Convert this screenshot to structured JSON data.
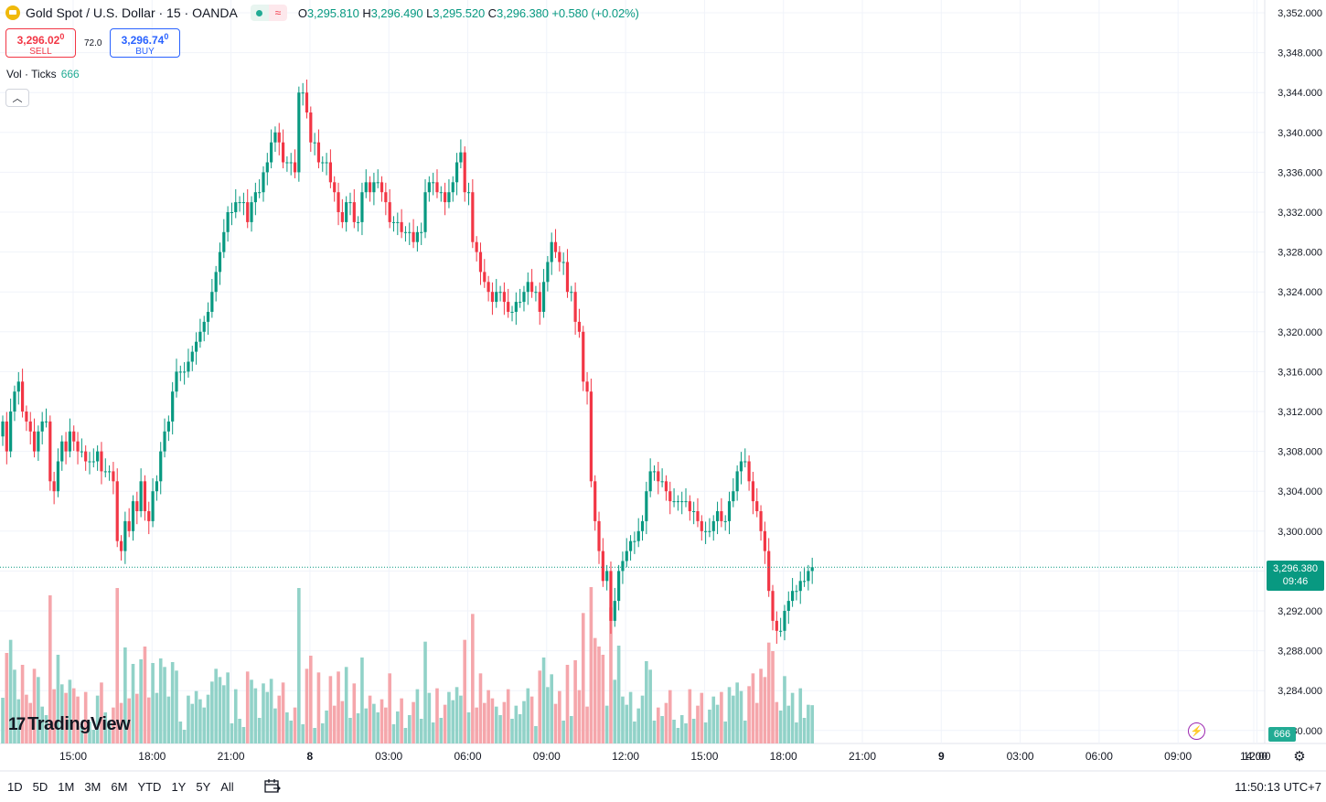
{
  "header": {
    "title": "Gold Spot / U.S. Dollar · 15 · OANDA",
    "ohlc": [
      {
        "k": "O",
        "v": "3,295.810"
      },
      {
        "k": "H",
        "v": "3,296.490"
      },
      {
        "k": "L",
        "v": "3,295.520"
      },
      {
        "k": "C",
        "v": "3,296.380"
      }
    ],
    "change": "+0.580 (+0.02%)",
    "replay_glyph": "≈"
  },
  "trade": {
    "sell_price": "3,296.02",
    "sell_price_sup": "0",
    "sell_label": "SELL",
    "spread": "72.0",
    "buy_price": "3,296.74",
    "buy_price_sup": "0",
    "buy_label": "BUY"
  },
  "volume_legend": {
    "label": "Vol · Ticks",
    "value": "666"
  },
  "collapse_glyph": "︿",
  "logo_text": "TradingView",
  "logo_mark": "17",
  "last_price": {
    "price": "3,296.380",
    "countdown": "09:46"
  },
  "last_volume": "666",
  "alert_glyph": "⚡",
  "settings_glyph": "⚙",
  "time_ranges": [
    "1D",
    "5D",
    "1M",
    "3M",
    "6M",
    "YTD",
    "1Y",
    "5Y",
    "All"
  ],
  "clock": "11:50:13 UTC+7",
  "colors": {
    "up": "#089981",
    "down": "#f23645",
    "up_volume": "#91d2c8",
    "down_volume": "#f5a6ab",
    "grid": "#f0f3fa"
  },
  "chart_data": {
    "type": "candlestick",
    "interval": "15",
    "y_axis": {
      "ticks": [
        "3,352.000",
        "3,348.000",
        "3,344.000",
        "3,340.000",
        "3,336.000",
        "3,332.000",
        "3,328.000",
        "3,324.000",
        "3,320.000",
        "3,316.000",
        "3,312.000",
        "3,308.000",
        "3,304.000",
        "3,300.000",
        "3,296.000",
        "3,292.000",
        "3,288.000",
        "3,284.000",
        "3,280.000"
      ],
      "range": [
        3279,
        3353
      ]
    },
    "x_axis": {
      "ticks": [
        "15:00",
        "18:00",
        "21:00",
        "8",
        "03:00",
        "06:00",
        "09:00",
        "12:00",
        "15:00",
        "18:00",
        "21:00",
        "9",
        "03:00",
        "06:00",
        "09:00",
        "12:00",
        "14:00"
      ]
    },
    "price_line": 3296.38,
    "closes": [
      3311.0,
      3308.0,
      3312.0,
      3314.0,
      3315.0,
      3312.0,
      3311.0,
      3310.0,
      3308.0,
      3310.0,
      3311.0,
      3311.0,
      3305.0,
      3304.0,
      3307.0,
      3309.0,
      3308.0,
      3310.0,
      3309.0,
      3308.0,
      3308.0,
      3307.0,
      3307.0,
      3307.0,
      3308.0,
      3306.0,
      3306.0,
      3306.0,
      3305.0,
      3299.0,
      3298.0,
      3301.0,
      3300.0,
      3303.0,
      3302.0,
      3305.0,
      3302.0,
      3301.0,
      3304.0,
      3305.0,
      3308.0,
      3310.0,
      3311.0,
      3314.0,
      3316.0,
      3316.0,
      3316.0,
      3317.0,
      3318.0,
      3319.0,
      3320.0,
      3321.0,
      3322.0,
      3324.0,
      3326.0,
      3328.0,
      3330.0,
      3332.0,
      3332.0,
      3333.0,
      3333.0,
      3333.0,
      3331.0,
      3333.0,
      3334.0,
      3334.0,
      3336.0,
      3337.0,
      3339.0,
      3340.0,
      3339.0,
      3337.0,
      3337.0,
      3337.0,
      3336.0,
      3344.0,
      3344.0,
      3342.0,
      3339.0,
      3339.0,
      3337.0,
      3337.0,
      3337.0,
      3335.0,
      3334.0,
      3332.0,
      3331.0,
      3333.0,
      3333.0,
      3331.0,
      3331.0,
      3334.0,
      3335.0,
      3334.0,
      3335.0,
      3335.0,
      3334.0,
      3333.0,
      3331.0,
      3331.0,
      3331.0,
      3330.0,
      3330.0,
      3330.0,
      3329.0,
      3330.0,
      3330.0,
      3334.0,
      3335.0,
      3335.0,
      3334.0,
      3334.0,
      3333.0,
      3334.0,
      3335.0,
      3337.0,
      3338.0,
      3334.0,
      3334.0,
      3329.0,
      3328.0,
      3326.0,
      3325.0,
      3324.0,
      3323.0,
      3324.0,
      3324.0,
      3323.0,
      3322.0,
      3322.0,
      3323.0,
      3323.0,
      3324.0,
      3325.0,
      3324.0,
      3324.0,
      3322.0,
      3325.0,
      3327.0,
      3329.0,
      3328.0,
      3327.0,
      3327.0,
      3324.0,
      3324.0,
      3321.0,
      3320.0,
      3315.0,
      3314.0,
      3305.0,
      3301.0,
      3298.0,
      3295.0,
      3296.0,
      3291.0,
      3293.0,
      3296.0,
      3297.0,
      3298.0,
      3299.0,
      3299.0,
      3300.0,
      3301.0,
      3304.0,
      3306.0,
      3306.0,
      3305.0,
      3305.0,
      3304.0,
      3303.0,
      3303.0,
      3303.0,
      3303.0,
      3303.0,
      3302.0,
      3302.0,
      3301.0,
      3300.0,
      3300.0,
      3300.0,
      3301.0,
      3302.0,
      3301.0,
      3301.0,
      3303.0,
      3304.0,
      3306.0,
      3307.0,
      3307.0,
      3305.0,
      3303.0,
      3302.0,
      3300.0,
      3298.0,
      3294.0,
      3291.0,
      3290.0,
      3290.0,
      3292.0,
      3293.0,
      3294.0,
      3294.0,
      3295.0,
      3295.0,
      3296.0,
      3296.38
    ],
    "volume_axis_visible_value": "666"
  }
}
